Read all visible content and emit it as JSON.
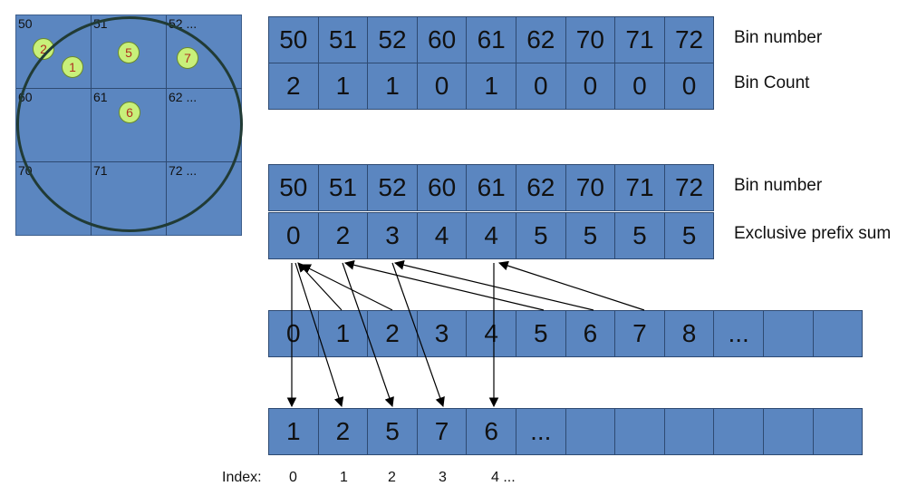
{
  "grid": {
    "cells": [
      "50",
      "51",
      "52 ...",
      "60",
      "61",
      "62 ...",
      "70",
      "71",
      "72 ..."
    ],
    "particles": [
      "2",
      "1",
      "5",
      "7",
      "6"
    ]
  },
  "table1": {
    "bin_numbers": [
      "50",
      "51",
      "52",
      "60",
      "61",
      "62",
      "70",
      "71",
      "72"
    ],
    "bin_counts": [
      "2",
      "1",
      "1",
      "0",
      "1",
      "0",
      "0",
      "0",
      "0"
    ],
    "label_bin_number": "Bin number",
    "label_bin_count": "Bin Count"
  },
  "table2": {
    "bin_numbers": [
      "50",
      "51",
      "52",
      "60",
      "61",
      "62",
      "70",
      "71",
      "72"
    ],
    "prefix_sums": [
      "0",
      "2",
      "3",
      "4",
      "4",
      "5",
      "5",
      "5",
      "5"
    ],
    "label_bin_number": "Bin number",
    "label_prefix_sum": "Exclusive prefix sum"
  },
  "index_row": {
    "values": [
      "0",
      "1",
      "2",
      "3",
      "4",
      "5",
      "6",
      "7",
      "8",
      "...",
      "",
      ""
    ]
  },
  "sorted_row": {
    "values": [
      "1",
      "2",
      "5",
      "7",
      "6",
      "...",
      "",
      "",
      "",
      "",
      "",
      ""
    ]
  },
  "index_axis": {
    "label": "Index:",
    "values": [
      "0",
      "1",
      "2",
      "3",
      "4 ..."
    ]
  },
  "colors": {
    "cell_fill": "#5b86c0",
    "particle_fill": "#c8f07a",
    "circle_stroke": "#213b35"
  }
}
